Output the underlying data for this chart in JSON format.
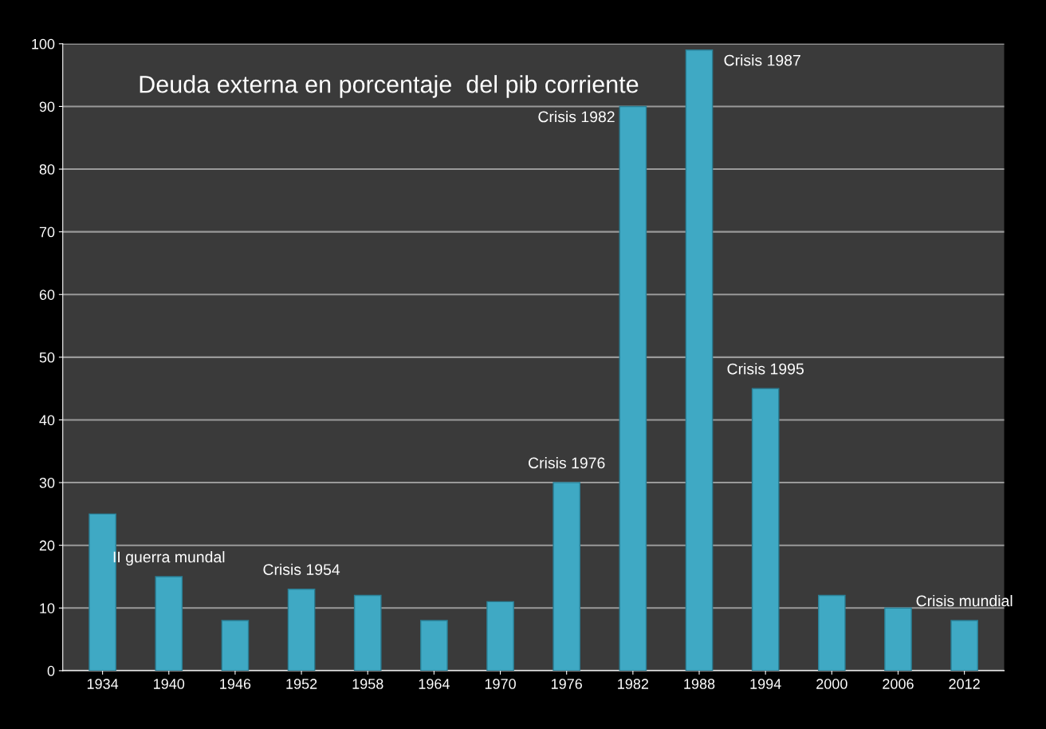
{
  "chart_data": {
    "type": "bar",
    "title": "Deuda externa en porcentaje  del pib corriente",
    "categories": [
      "1934",
      "1940",
      "1946",
      "1952",
      "1958",
      "1964",
      "1970",
      "1976",
      "1982",
      "1988",
      "1994",
      "2000",
      "2006",
      "2012"
    ],
    "values": [
      25,
      15,
      8,
      13,
      12,
      8,
      11,
      30,
      90,
      99,
      45,
      12,
      10,
      8
    ],
    "color": "#3fa9c4",
    "ylim": [
      0,
      100
    ],
    "yticks": [
      0,
      10,
      20,
      30,
      40,
      50,
      60,
      70,
      80,
      90,
      100
    ],
    "grid": "y",
    "annotations": [
      {
        "text": "II guerra mundal",
        "x": "1940",
        "y": 15
      },
      {
        "text": "Crisis 1954",
        "x": "1952",
        "y": 13
      },
      {
        "text": "Crisis 1976",
        "x": "1976",
        "y": 30
      },
      {
        "text": "Crisis 1982",
        "x": "1982",
        "y": 90
      },
      {
        "text": "Crisis 1987",
        "x": "1988",
        "y": 99
      },
      {
        "text": "Crisis 1995",
        "x": "1994",
        "y": 45
      },
      {
        "text": "Crisis mundial",
        "x": "2012",
        "y": 8
      }
    ]
  }
}
